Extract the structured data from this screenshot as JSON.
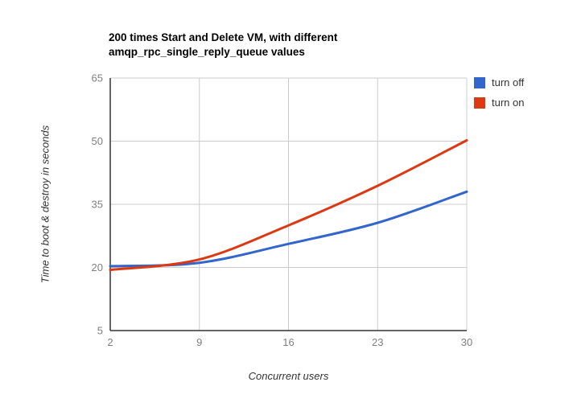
{
  "title": {
    "line1": "200 times Start and Delete VM, with different",
    "line2": "amqp_rpc_single_reply_queue values"
  },
  "legend": [
    {
      "label": "turn off",
      "color": "#3366CC"
    },
    {
      "label": "turn on",
      "color": "#DC3912"
    }
  ],
  "axis_titles": {
    "x": "Concurrent users",
    "y": "Time to boot & destroy in seconds"
  },
  "chart_data": {
    "type": "line",
    "title": "200 times Start and Delete VM, with different amqp_rpc_single_reply_queue values",
    "x": [
      2,
      9,
      16,
      23,
      30
    ],
    "series": [
      {
        "name": "turn off",
        "color": "#3366CC",
        "values": [
          20.3,
          21.1,
          25.6,
          30.6,
          38.0
        ]
      },
      {
        "name": "turn on",
        "color": "#DC3912",
        "values": [
          19.4,
          21.9,
          30.0,
          39.4,
          50.2
        ]
      }
    ],
    "xlabel": "Concurrent users",
    "ylabel": "Time to boot & destroy in seconds",
    "xlim": [
      2,
      30
    ],
    "ylim": [
      5,
      65
    ],
    "xticks": [
      2,
      9,
      16,
      23,
      30
    ],
    "yticks": [
      5,
      20,
      35,
      50,
      65
    ],
    "smooth": true,
    "grid": true,
    "legend_position": "right",
    "colors": {
      "gridline": "#CCCCCC",
      "axis": "#333333",
      "tick_label": "#808080",
      "background": "#FFFFFF"
    }
  }
}
